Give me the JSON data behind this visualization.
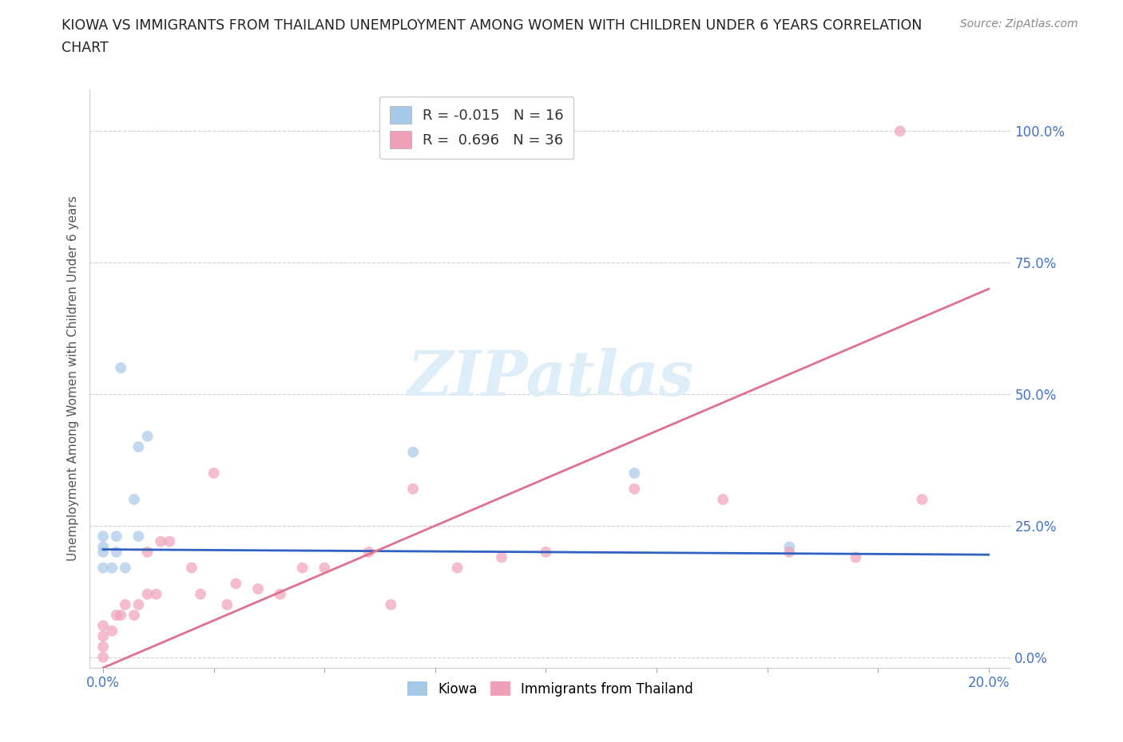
{
  "title_line1": "KIOWA VS IMMIGRANTS FROM THAILAND UNEMPLOYMENT AMONG WOMEN WITH CHILDREN UNDER 6 YEARS CORRELATION",
  "title_line2": "CHART",
  "source": "Source: ZipAtlas.com",
  "ylabel": "Unemployment Among Women with Children Under 6 years",
  "ytick_labels": [
    "0.0%",
    "25.0%",
    "50.0%",
    "75.0%",
    "100.0%"
  ],
  "ytick_values": [
    0.0,
    0.25,
    0.5,
    0.75,
    1.0
  ],
  "xtick_values": [
    0.0,
    0.025,
    0.05,
    0.075,
    0.1,
    0.125,
    0.15,
    0.175,
    0.2
  ],
  "xtick_labels": [
    "0.0%",
    "",
    "",
    "",
    "",
    "",
    "",
    "",
    "20.0%"
  ],
  "xlim": [
    -0.003,
    0.205
  ],
  "ylim": [
    -0.02,
    1.08
  ],
  "kiowa_R": -0.015,
  "kiowa_N": 16,
  "thailand_R": 0.696,
  "thailand_N": 36,
  "kiowa_color": "#a8c8e8",
  "thailand_color": "#f0a0b8",
  "kiowa_line_color": "#3060c0",
  "thailand_line_color": "#e07090",
  "legend_label1": "Kiowa",
  "legend_label2": "Immigrants from Thailand",
  "watermark": "ZIPatlas",
  "kiowa_line_y0": 0.205,
  "kiowa_line_y1": 0.195,
  "thailand_line_y0": -0.02,
  "thailand_line_y1": 0.7,
  "kiowa_x": [
    0.0,
    0.0,
    0.0,
    0.0,
    0.002,
    0.003,
    0.003,
    0.004,
    0.005,
    0.007,
    0.008,
    0.008,
    0.01,
    0.07,
    0.12,
    0.155
  ],
  "kiowa_y": [
    0.17,
    0.2,
    0.21,
    0.23,
    0.17,
    0.2,
    0.23,
    0.55,
    0.17,
    0.3,
    0.23,
    0.4,
    0.42,
    0.39,
    0.35,
    0.21
  ],
  "thailand_x": [
    0.0,
    0.0,
    0.0,
    0.0,
    0.002,
    0.003,
    0.004,
    0.005,
    0.007,
    0.008,
    0.01,
    0.01,
    0.012,
    0.013,
    0.015,
    0.02,
    0.022,
    0.025,
    0.028,
    0.03,
    0.035,
    0.04,
    0.045,
    0.05,
    0.06,
    0.065,
    0.07,
    0.08,
    0.09,
    0.1,
    0.12,
    0.14,
    0.155,
    0.17,
    0.18,
    0.185
  ],
  "thailand_y": [
    0.0,
    0.02,
    0.04,
    0.06,
    0.05,
    0.08,
    0.08,
    0.1,
    0.08,
    0.1,
    0.12,
    0.2,
    0.12,
    0.22,
    0.22,
    0.17,
    0.12,
    0.35,
    0.1,
    0.14,
    0.13,
    0.12,
    0.17,
    0.17,
    0.2,
    0.1,
    0.32,
    0.17,
    0.19,
    0.2,
    0.32,
    0.3,
    0.2,
    0.19,
    1.0,
    0.3
  ]
}
